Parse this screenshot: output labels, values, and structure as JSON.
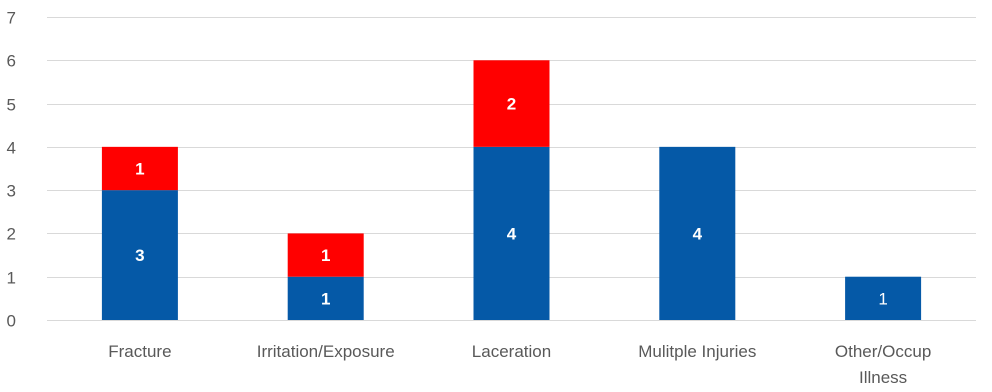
{
  "chart_data": {
    "type": "bar",
    "stacked": true,
    "title": "",
    "xlabel": "",
    "ylabel": "",
    "ylim": [
      0,
      7
    ],
    "yticks": [
      0,
      1,
      2,
      3,
      4,
      5,
      6,
      7
    ],
    "grid": true,
    "legend": "none",
    "categories": [
      [
        "Fracture"
      ],
      [
        "Irritation/Exposure"
      ],
      [
        "Laceration"
      ],
      [
        "Mulitple Injuries"
      ],
      [
        "Other/Occup",
        "Illness"
      ]
    ],
    "series": [
      {
        "color": "#0559a7",
        "values": [
          3,
          1,
          4,
          4,
          1
        ],
        "labels": [
          "3",
          "1",
          "4",
          "4",
          "1"
        ],
        "label_bold": [
          true,
          true,
          true,
          true,
          false
        ]
      },
      {
        "color": "#ff0000",
        "values": [
          1,
          1,
          2,
          0,
          0
        ],
        "labels": [
          "1",
          "1",
          "2",
          "",
          ""
        ],
        "label_bold": [
          true,
          true,
          true,
          false,
          false
        ]
      }
    ]
  }
}
